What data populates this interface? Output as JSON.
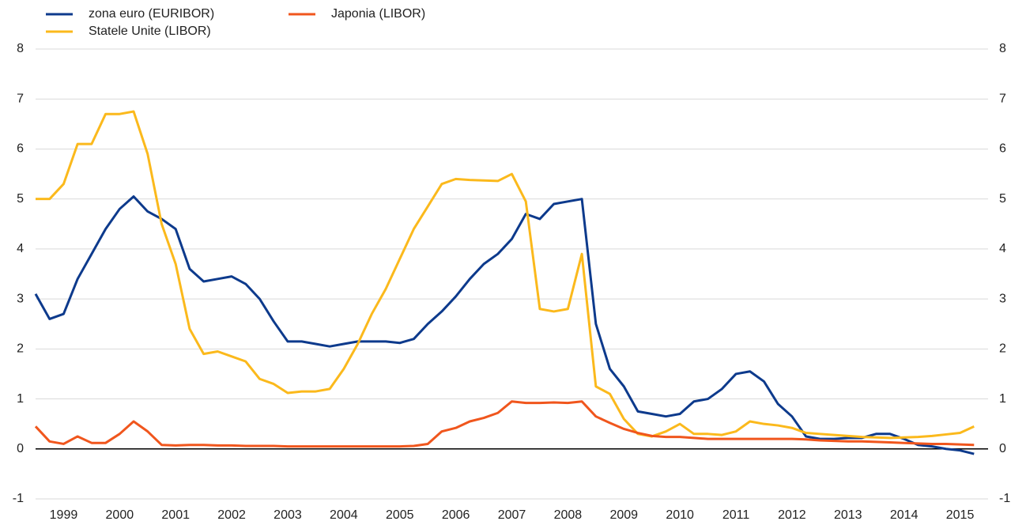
{
  "chart_data": {
    "type": "line",
    "x": [
      1999,
      1999.25,
      1999.5,
      1999.75,
      2000,
      2000.25,
      2000.5,
      2000.75,
      2001,
      2001.25,
      2001.5,
      2001.75,
      2002,
      2002.25,
      2002.5,
      2002.75,
      2003,
      2003.25,
      2003.5,
      2003.75,
      2004,
      2004.25,
      2004.5,
      2004.75,
      2005,
      2005.25,
      2005.5,
      2005.75,
      2006,
      2006.25,
      2006.5,
      2006.75,
      2007,
      2007.25,
      2007.5,
      2007.75,
      2008,
      2008.25,
      2008.5,
      2008.75,
      2009,
      2009.25,
      2009.5,
      2009.75,
      2010,
      2010.25,
      2010.5,
      2010.75,
      2011,
      2011.25,
      2011.5,
      2011.75,
      2012,
      2012.25,
      2012.5,
      2012.75,
      2013,
      2013.25,
      2013.5,
      2013.75,
      2014,
      2014.25,
      2014.5,
      2014.75,
      2015,
      2015.25,
      2015.5,
      2015.75
    ],
    "series": [
      {
        "name": "zona euro (EURIBOR)",
        "color": "#0d3a8c",
        "values": [
          3.1,
          2.6,
          2.7,
          3.4,
          3.9,
          4.4,
          4.8,
          5.05,
          4.75,
          4.6,
          4.4,
          3.6,
          3.35,
          3.4,
          3.45,
          3.3,
          3.0,
          2.55,
          2.15,
          2.15,
          2.1,
          2.05,
          2.1,
          2.15,
          2.15,
          2.15,
          2.12,
          2.2,
          2.5,
          2.75,
          3.05,
          3.4,
          3.7,
          3.9,
          4.2,
          4.7,
          4.6,
          4.9,
          4.95,
          5.0,
          2.5,
          1.6,
          1.25,
          0.75,
          0.7,
          0.65,
          0.7,
          0.95,
          1.0,
          1.2,
          1.5,
          1.55,
          1.35,
          0.9,
          0.65,
          0.25,
          0.2,
          0.2,
          0.22,
          0.22,
          0.3,
          0.3,
          0.2,
          0.08,
          0.05,
          0.0,
          -0.03,
          -0.1
        ]
      },
      {
        "name": "Statele Unite (LIBOR)",
        "color": "#fbb91c",
        "values": [
          5.0,
          5.0,
          5.3,
          6.1,
          6.1,
          6.7,
          6.7,
          6.75,
          5.9,
          4.5,
          3.7,
          2.4,
          1.9,
          1.95,
          1.85,
          1.75,
          1.4,
          1.3,
          1.12,
          1.15,
          1.15,
          1.2,
          1.6,
          2.1,
          2.7,
          3.2,
          3.8,
          4.4,
          4.85,
          5.3,
          5.4,
          5.38,
          5.37,
          5.36,
          5.5,
          4.95,
          2.8,
          2.75,
          2.8,
          3.9,
          1.25,
          1.1,
          0.6,
          0.3,
          0.25,
          0.35,
          0.5,
          0.3,
          0.3,
          0.28,
          0.35,
          0.55,
          0.5,
          0.47,
          0.42,
          0.32,
          0.3,
          0.28,
          0.26,
          0.24,
          0.23,
          0.22,
          0.23,
          0.24,
          0.26,
          0.29,
          0.32,
          0.45
        ]
      },
      {
        "name": "Japonia (LIBOR)",
        "color": "#f0561d",
        "values": [
          0.45,
          0.15,
          0.1,
          0.25,
          0.12,
          0.12,
          0.3,
          0.55,
          0.35,
          0.08,
          0.07,
          0.08,
          0.08,
          0.07,
          0.07,
          0.06,
          0.06,
          0.06,
          0.05,
          0.05,
          0.05,
          0.05,
          0.05,
          0.05,
          0.05,
          0.05,
          0.05,
          0.06,
          0.1,
          0.35,
          0.42,
          0.55,
          0.62,
          0.72,
          0.95,
          0.92,
          0.92,
          0.93,
          0.92,
          0.95,
          0.65,
          0.52,
          0.4,
          0.32,
          0.26,
          0.24,
          0.24,
          0.22,
          0.2,
          0.2,
          0.2,
          0.2,
          0.2,
          0.2,
          0.2,
          0.19,
          0.17,
          0.16,
          0.15,
          0.15,
          0.14,
          0.13,
          0.12,
          0.11,
          0.1,
          0.1,
          0.09,
          0.08
        ]
      }
    ],
    "xlim": [
      1999,
      2016
    ],
    "xticks": [
      {
        "value": 1999.5,
        "label": "1999"
      },
      {
        "value": 2000.5,
        "label": "2000"
      },
      {
        "value": 2001.5,
        "label": "2001"
      },
      {
        "value": 2002.5,
        "label": "2002"
      },
      {
        "value": 2003.5,
        "label": "2003"
      },
      {
        "value": 2004.5,
        "label": "2004"
      },
      {
        "value": 2005.5,
        "label": "2005"
      },
      {
        "value": 2006.5,
        "label": "2006"
      },
      {
        "value": 2007.5,
        "label": "2007"
      },
      {
        "value": 2008.5,
        "label": "2008"
      },
      {
        "value": 2009.5,
        "label": "2009"
      },
      {
        "value": 2010.5,
        "label": "2010"
      },
      {
        "value": 2011.5,
        "label": "2011"
      },
      {
        "value": 2012.5,
        "label": "2012"
      },
      {
        "value": 2013.5,
        "label": "2013"
      },
      {
        "value": 2014.5,
        "label": "2014"
      },
      {
        "value": 2015.5,
        "label": "2015"
      }
    ],
    "ylim": [
      -1,
      8
    ],
    "yticks": [
      -1,
      0,
      1,
      2,
      3,
      4,
      5,
      6,
      7,
      8
    ],
    "grid": true,
    "legend": "top-left"
  }
}
